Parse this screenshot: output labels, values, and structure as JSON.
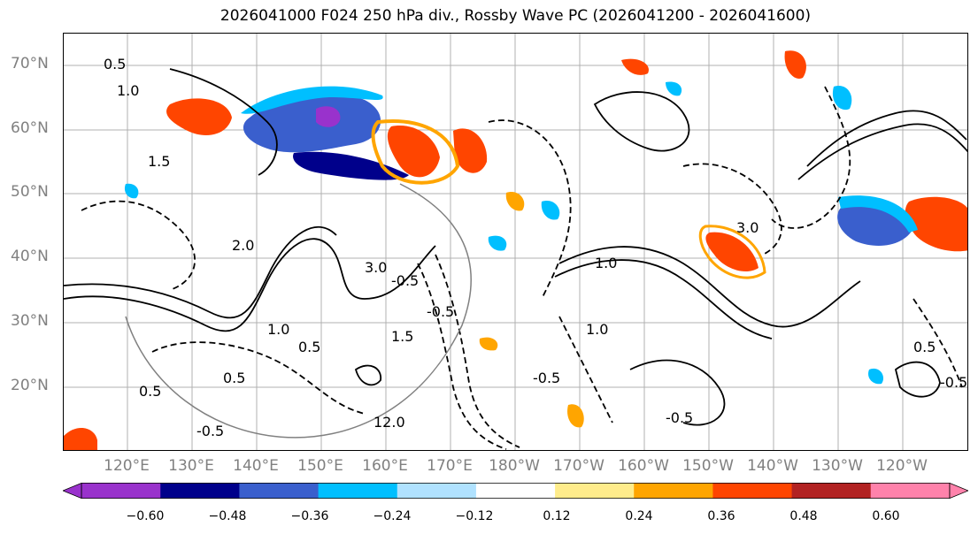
{
  "title": "2026041000 F024 250 hPa div., Rossby Wave PC (2026041200 - 2026041600)",
  "map": {
    "lat_labels": [
      "70°N",
      "60°N",
      "50°N",
      "40°N",
      "30°N",
      "20°N"
    ],
    "lon_labels": [
      "120°E",
      "130°E",
      "140°E",
      "150°E",
      "160°E",
      "170°E",
      "180°W",
      "170°W",
      "160°W",
      "150°W",
      "140°W",
      "130°W",
      "120°W"
    ],
    "contour_labels": [
      "0.5",
      "1.0",
      "1.5",
      "2.0",
      "3.0",
      "0.5",
      "-0.5",
      "-0.5",
      "-0.5",
      "1.0",
      "1.5",
      "3.0",
      "1.0",
      "0.5",
      "0.5",
      "-0.5",
      "-0.5",
      "1.0",
      "0.5",
      "-0.5",
      "12.0"
    ],
    "grid_color": "#b0b0b0",
    "label_color": "#808080"
  },
  "colorbar": {
    "colors": [
      "#9932cc",
      "#00008b",
      "#3a5fcd",
      "#00bfff",
      "#b0e2ff",
      "#ffffff",
      "#ffec8b",
      "#ffa500",
      "#ff4500",
      "#b22222",
      "#ff82ab"
    ],
    "under_color": "#9932cc",
    "over_color": "#ff82ab",
    "tick_labels": [
      "−0.60",
      "−0.48",
      "−0.36",
      "−0.24",
      "−0.12",
      "0.12",
      "0.24",
      "0.36",
      "0.48",
      "0.60"
    ],
    "levels": [
      -0.6,
      -0.48,
      -0.36,
      -0.24,
      -0.12,
      0.12,
      0.24,
      0.36,
      0.48,
      0.6
    ]
  },
  "shaded_regions": [
    {
      "name": "divergence-kamchatka",
      "color": "#3a5fcd"
    },
    {
      "name": "divergence-kamchatka-core",
      "color": "#9932cc"
    },
    {
      "name": "divergence-aleutian-east",
      "color": "#ff4500"
    },
    {
      "name": "divergence-gulf-alaska",
      "color": "#ff4500"
    },
    {
      "name": "divergence-west-coast",
      "color": "#ff4500"
    },
    {
      "name": "convergence-northeast-pacific",
      "color": "#3a5fcd"
    }
  ]
}
